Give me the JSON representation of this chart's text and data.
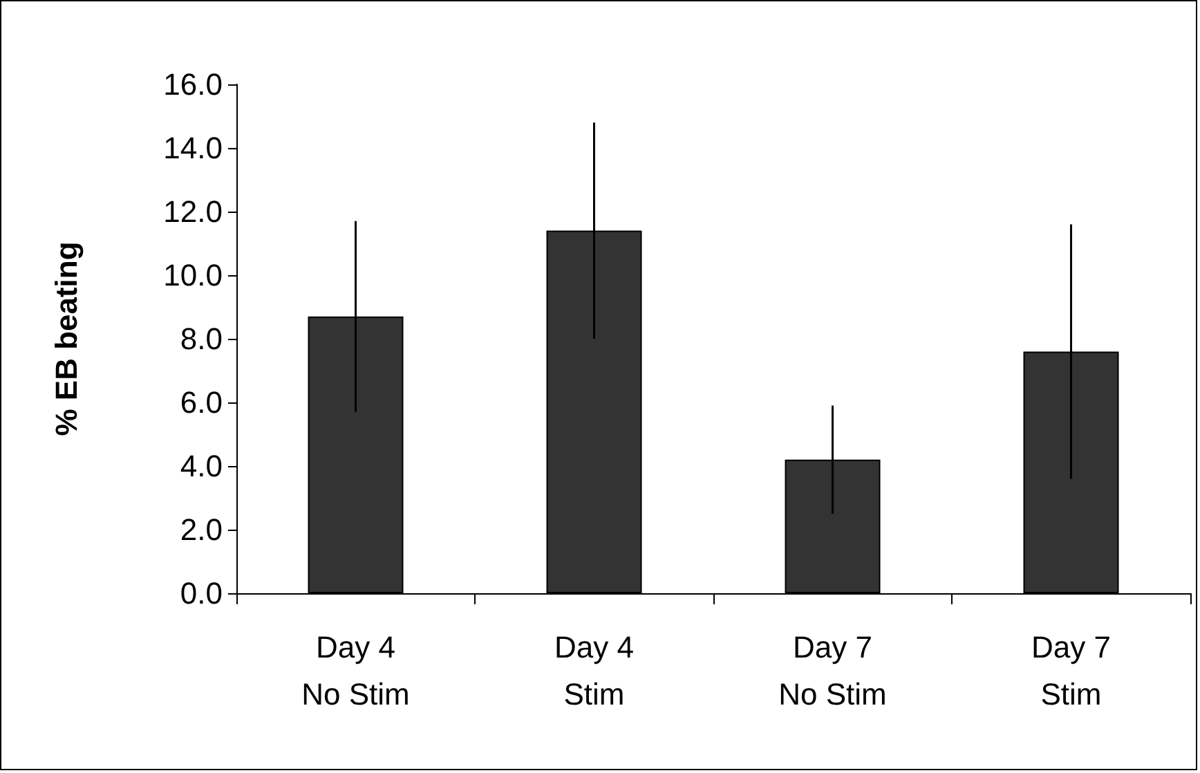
{
  "chart_data": {
    "type": "bar",
    "ylabel": "% EB beating",
    "categories": [
      "Day 4\nNo Stim",
      "Day 4\nStim",
      "Day 7\nNo Stim",
      "Day 7\nStim"
    ],
    "values": [
      8.7,
      11.4,
      4.2,
      7.6
    ],
    "errors": [
      3.0,
      3.4,
      1.7,
      4.0
    ],
    "color": "#333333",
    "ylim": [
      0,
      16
    ],
    "yticks": [
      {
        "value": 0,
        "label": "0.0"
      },
      {
        "value": 2,
        "label": "2.0"
      },
      {
        "value": 4,
        "label": "4.0"
      },
      {
        "value": 6,
        "label": "6.0"
      },
      {
        "value": 8,
        "label": "8.0"
      },
      {
        "value": 10,
        "label": "10.0"
      },
      {
        "value": 12,
        "label": "12.0"
      },
      {
        "value": 14,
        "label": "14.0"
      },
      {
        "value": 16,
        "label": "16.0"
      }
    ],
    "grid": false
  }
}
